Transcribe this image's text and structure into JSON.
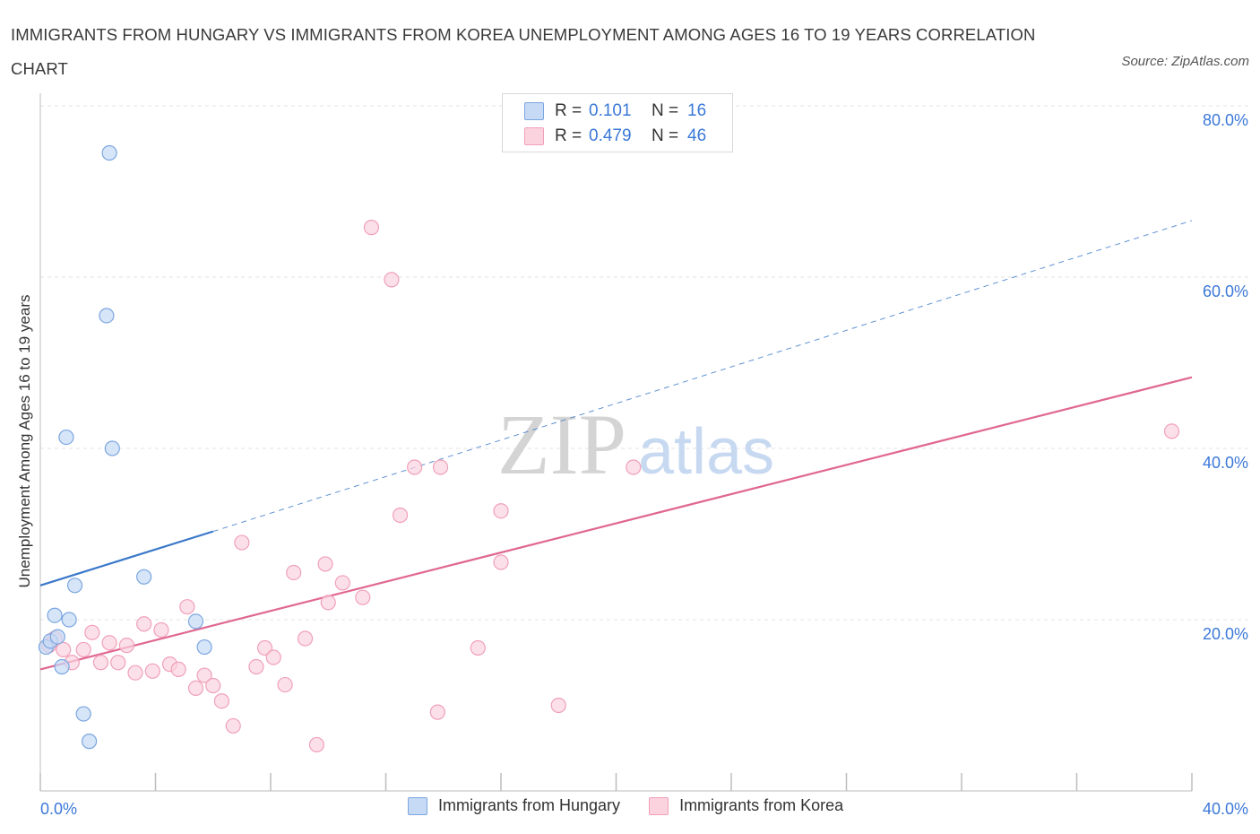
{
  "chart_data": {
    "type": "scatter",
    "title": "IMMIGRANTS FROM HUNGARY VS IMMIGRANTS FROM KOREA UNEMPLOYMENT AMONG AGES 16 TO 19 YEARS CORRELATION CHART",
    "source": "Source: ZipAtlas.com",
    "ylabel": "Unemployment Among Ages 16 to 19 years",
    "xlabel": "",
    "xlim": [
      0,
      40
    ],
    "ylim": [
      0,
      80
    ],
    "x_tick_labels": [
      "0.0%",
      "40.0%"
    ],
    "y_tick_labels": [
      "20.0%",
      "40.0%",
      "60.0%",
      "80.0%"
    ],
    "y_ticks": [
      20,
      40,
      60,
      80
    ],
    "watermark": {
      "zip": "ZIP",
      "atlas": "atlas"
    },
    "legend_stats": [
      {
        "r_label": "R =",
        "r": "0.101",
        "n_label": "N =",
        "n": "16"
      },
      {
        "r_label": "R =",
        "r": "0.479",
        "n_label": "N =",
        "n": "46"
      }
    ],
    "series": [
      {
        "name": "Immigrants from Hungary",
        "color": "#7aa6e0",
        "fill": "#c6daf5",
        "line_color": "#3a78c9",
        "trend": {
          "x1": 0,
          "y1": 24.0,
          "x2": 6.0,
          "y2": 30.3,
          "dashed_to_x": 40,
          "dashed_to_y": 66.6
        },
        "points": [
          [
            0.2,
            16.8
          ],
          [
            0.35,
            17.5
          ],
          [
            0.6,
            18.0
          ],
          [
            0.5,
            20.5
          ],
          [
            0.75,
            14.5
          ],
          [
            1.0,
            20.0
          ],
          [
            1.2,
            24.0
          ],
          [
            0.9,
            41.3
          ],
          [
            2.3,
            55.5
          ],
          [
            2.4,
            74.5
          ],
          [
            2.5,
            40.0
          ],
          [
            3.6,
            25.0
          ],
          [
            5.4,
            19.8
          ],
          [
            5.7,
            16.8
          ],
          [
            1.5,
            9.0
          ],
          [
            1.7,
            5.8
          ]
        ]
      },
      {
        "name": "Immigrants from Korea",
        "color": "#f0a0b8",
        "fill": "#fbd3df",
        "line_color": "#e06792",
        "trend": {
          "x1": 0,
          "y1": 14.2,
          "x2": 40,
          "y2": 48.3
        },
        "points": [
          [
            0.3,
            17.0
          ],
          [
            0.5,
            17.8
          ],
          [
            0.8,
            16.5
          ],
          [
            1.1,
            15.0
          ],
          [
            1.5,
            16.5
          ],
          [
            1.8,
            18.5
          ],
          [
            2.1,
            15.0
          ],
          [
            2.4,
            17.3
          ],
          [
            2.7,
            15.0
          ],
          [
            3.0,
            17.0
          ],
          [
            3.3,
            13.8
          ],
          [
            3.6,
            19.5
          ],
          [
            3.9,
            14.0
          ],
          [
            4.2,
            18.8
          ],
          [
            4.5,
            14.8
          ],
          [
            4.8,
            14.2
          ],
          [
            5.1,
            21.5
          ],
          [
            5.4,
            12.0
          ],
          [
            5.7,
            13.5
          ],
          [
            6.0,
            12.3
          ],
          [
            6.3,
            10.5
          ],
          [
            6.7,
            7.6
          ],
          [
            7.0,
            29.0
          ],
          [
            7.5,
            14.5
          ],
          [
            7.8,
            16.7
          ],
          [
            8.1,
            15.6
          ],
          [
            8.5,
            12.4
          ],
          [
            8.8,
            25.5
          ],
          [
            9.2,
            17.8
          ],
          [
            9.6,
            5.4
          ],
          [
            9.9,
            26.5
          ],
          [
            10.0,
            22.0
          ],
          [
            10.5,
            24.3
          ],
          [
            11.2,
            22.6
          ],
          [
            11.5,
            65.8
          ],
          [
            12.2,
            59.7
          ],
          [
            12.5,
            32.2
          ],
          [
            13.0,
            37.8
          ],
          [
            13.8,
            9.2
          ],
          [
            13.9,
            37.8
          ],
          [
            15.2,
            16.7
          ],
          [
            16.0,
            32.7
          ],
          [
            16.0,
            26.7
          ],
          [
            18.0,
            10.0
          ],
          [
            20.6,
            37.8
          ],
          [
            39.3,
            42.0
          ]
        ]
      }
    ]
  }
}
